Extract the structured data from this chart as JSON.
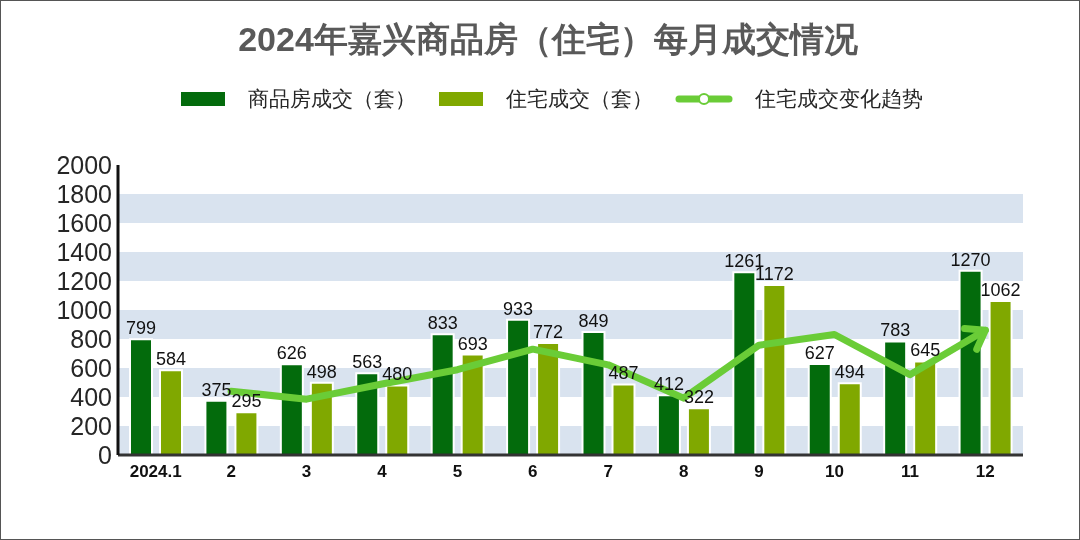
{
  "chart_data": {
    "type": "bar",
    "title": "2024年嘉兴商品房（住宅）每月成交情况",
    "categories": [
      "2024.1",
      "2",
      "3",
      "4",
      "5",
      "6",
      "7",
      "8",
      "9",
      "10",
      "11",
      "12"
    ],
    "series": [
      {
        "name": "商品房成交（套）",
        "color": "#036b0c",
        "values": [
          799,
          375,
          626,
          563,
          833,
          933,
          849,
          412,
          1261,
          627,
          783,
          1270
        ],
        "value_labels": [
          "799",
          "375",
          "626",
          "563",
          "833",
          "933",
          "849",
          "412",
          "1261",
          "627",
          "783",
          "1270"
        ]
      },
      {
        "name": "住宅成交（套）",
        "color": "#80a800",
        "values": [
          584,
          295,
          498,
          480,
          693,
          772,
          487,
          322,
          1172,
          494,
          645,
          1062
        ],
        "value_labels": [
          "584",
          "295",
          "498",
          "480",
          "693",
          "772",
          "487",
          "322",
          "1172",
          "494",
          "645",
          "1062"
        ]
      },
      {
        "name": "住宅成交变化趋势",
        "type": "line",
        "color": "#6acc37",
        "values": [
          null,
          440,
          385,
          490,
          588,
          730,
          622,
          392,
          757,
          831,
          554,
          860
        ]
      }
    ],
    "ylim": [
      0,
      2000
    ],
    "yticks": [
      0,
      200,
      400,
      600,
      800,
      1000,
      1200,
      1400,
      1600,
      1800,
      2000
    ],
    "bands": [
      {
        "axis": "y",
        "from": 0,
        "to": 200,
        "color": "#d9e3ef"
      },
      {
        "axis": "y",
        "from": 400,
        "to": 600,
        "color": "#d9e3ef"
      },
      {
        "axis": "y",
        "from": 800,
        "to": 1000,
        "color": "#d9e3ef"
      },
      {
        "axis": "y",
        "from": 1200,
        "to": 1400,
        "color": "#d9e3ef"
      },
      {
        "axis": "y",
        "from": 1600,
        "to": 1800,
        "color": "#d9e3ef"
      }
    ],
    "legend": "top"
  }
}
